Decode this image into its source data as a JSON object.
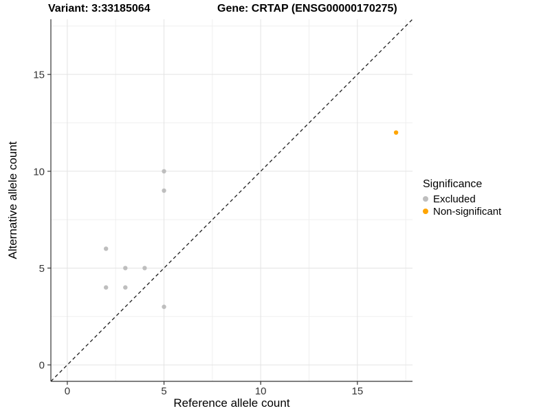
{
  "chart_data": {
    "type": "scatter",
    "titles": {
      "left": "Variant: 3:33185064",
      "right": "Gene: CRTAP (ENSG00000170275)"
    },
    "xlabel": "Reference allele count",
    "ylabel": "Alternative allele count",
    "xlim": [
      -0.85,
      17.85
    ],
    "ylim": [
      -0.85,
      17.85
    ],
    "x_ticks": [
      0,
      5,
      10,
      15
    ],
    "y_ticks": [
      0,
      5,
      10,
      15
    ],
    "x_minor_ticks": [
      2.5,
      7.5,
      12.5,
      17.5
    ],
    "y_minor_ticks": [
      2.5,
      7.5,
      12.5,
      17.5
    ],
    "grid": true,
    "legend_position": "right",
    "series": [
      {
        "name": "Excluded",
        "color": "#BEBEBE",
        "points": [
          [
            2,
            4
          ],
          [
            2,
            6
          ],
          [
            3,
            4
          ],
          [
            3,
            5
          ],
          [
            4,
            5
          ],
          [
            5,
            3
          ],
          [
            5,
            9
          ],
          [
            5,
            10
          ]
        ]
      },
      {
        "name": "Non-significant",
        "color": "#FFA500",
        "points": [
          [
            17,
            12
          ]
        ]
      }
    ],
    "reference_line": {
      "kind": "identity",
      "style": "dashed",
      "color": "#1A1A1A"
    }
  },
  "legend": {
    "title": "Significance",
    "items": [
      {
        "label": "Excluded",
        "color": "#BEBEBE"
      },
      {
        "label": "Non-significant",
        "color": "#FFA500"
      }
    ]
  },
  "colors": {
    "background": "#FFFFFF",
    "grid_major": "#E3E3E3",
    "grid_minor": "#EFEFEF",
    "axis_line": "#333333",
    "tick_text": "#333333",
    "excluded_point": "#BEBEBE",
    "non_significant_point": "#FFA500"
  }
}
